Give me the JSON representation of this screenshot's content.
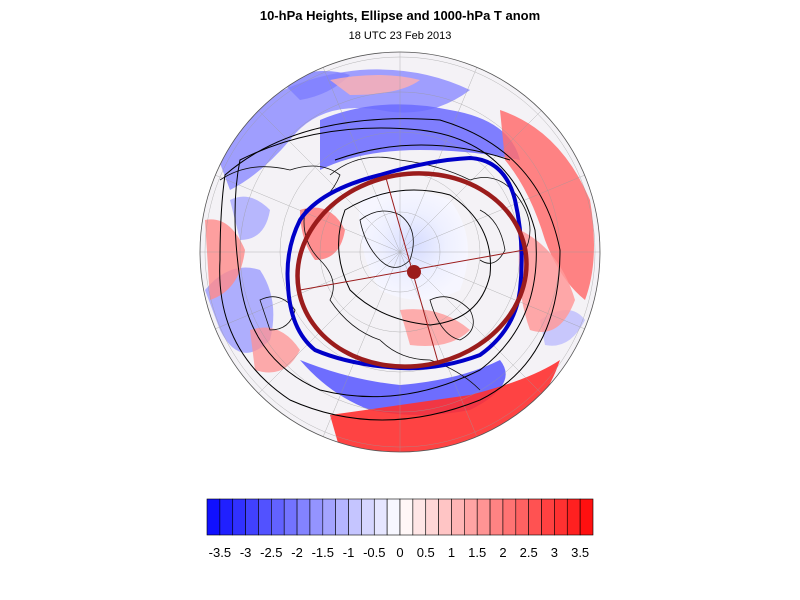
{
  "title": "10-hPa Heights, Ellipse and 1000-hPa T anom",
  "subtitle": "18 UTC 23 Feb 2013",
  "colorbar": {
    "levels": [
      -3.75,
      -3.5,
      -3.25,
      -3,
      -2.75,
      -2.5,
      -2.25,
      -2,
      -1.75,
      -1.5,
      -1.25,
      -1,
      -0.75,
      -0.5,
      -0.25,
      0,
      0.25,
      0.5,
      0.75,
      1,
      1.25,
      1.5,
      1.75,
      2,
      2.25,
      2.5,
      2.75,
      3,
      3.25,
      3.5,
      3.75
    ],
    "tick_labels": [
      "-3.5",
      "-3",
      "-2.5",
      "-2",
      "-1.5",
      "-1",
      "-0.5",
      "0",
      "0.5",
      "1",
      "1.5",
      "2",
      "2.5",
      "3",
      "3.5"
    ],
    "cold_color": "#1010ff",
    "neutral_color": "#ffffff",
    "warm_color": "#ff1010"
  },
  "map": {
    "projection": "north-polar-orthographic",
    "ellipse_color": "#9b1c1c",
    "vortex_contour_color": "#0000c8",
    "height_contour_color": "#000000"
  }
}
